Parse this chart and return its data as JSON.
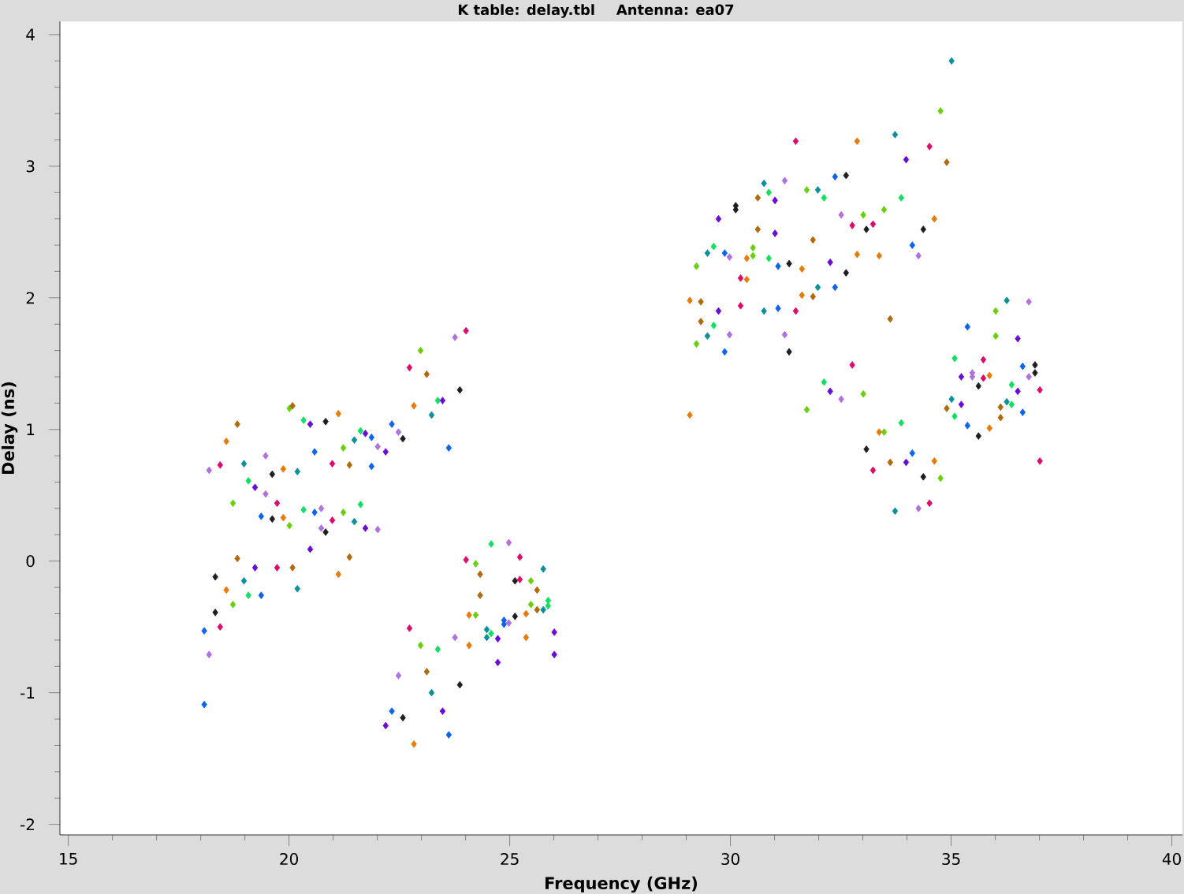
{
  "chart_data": {
    "type": "scatter",
    "title": "K table: delay.tbl",
    "subtitle": "Antenna: ea07",
    "xlabel": "Frequency (GHz)",
    "ylabel": "Delay (ns)",
    "xlim": [
      14.81,
      40.24
    ],
    "ylim": [
      -2.08,
      4.1
    ],
    "xticks": [
      15,
      {
        "value": 16,
        "label": null
      },
      {
        "value": 17,
        "label": null
      },
      {
        "value": 18,
        "label": null
      },
      {
        "value": 19,
        "label": null
      },
      20,
      {
        "value": 21,
        "label": null
      },
      {
        "value": 22,
        "label": null
      },
      {
        "value": 23,
        "label": null
      },
      {
        "value": 24,
        "label": null
      },
      25,
      {
        "value": 26,
        "label": null
      },
      {
        "value": 27,
        "label": null
      },
      {
        "value": 28,
        "label": null
      },
      {
        "value": 29,
        "label": null
      },
      30,
      {
        "value": 31,
        "label": null
      },
      {
        "value": 32,
        "label": null
      },
      {
        "value": 33,
        "label": null
      },
      {
        "value": 34,
        "label": null
      },
      35,
      {
        "value": 36,
        "label": null
      },
      {
        "value": 37,
        "label": null
      },
      {
        "value": 38,
        "label": null
      },
      {
        "value": 39,
        "label": null
      },
      40
    ],
    "yticks": [
      -2,
      {
        "value": -1.8,
        "label": null
      },
      {
        "value": -1.6,
        "label": null
      },
      {
        "value": -1.4,
        "label": null
      },
      {
        "value": -1.2,
        "label": null
      },
      -1,
      {
        "value": -0.8,
        "label": null
      },
      {
        "value": -0.6,
        "label": null
      },
      {
        "value": -0.4,
        "label": null
      },
      {
        "value": -0.2,
        "label": null
      },
      0,
      {
        "value": 0.2,
        "label": null
      },
      {
        "value": 0.4,
        "label": null
      },
      {
        "value": 0.6,
        "label": null
      },
      {
        "value": 0.8,
        "label": null
      },
      1,
      {
        "value": 1.2,
        "label": null
      },
      {
        "value": 1.4,
        "label": null
      },
      {
        "value": 1.6,
        "label": null
      },
      {
        "value": 1.8,
        "label": null
      },
      2,
      {
        "value": 2.2,
        "label": null
      },
      {
        "value": 2.4,
        "label": null
      },
      {
        "value": 2.6,
        "label": null
      },
      {
        "value": 2.8,
        "label": null
      },
      3,
      {
        "value": 3.2,
        "label": null
      },
      {
        "value": 3.4,
        "label": null
      },
      {
        "value": 3.6,
        "label": null
      },
      {
        "value": 3.8,
        "label": null
      },
      4
    ],
    "marker": "diamond",
    "series": [
      {
        "color": "#1e1e1e",
        "x": [
          20.83,
          19.62,
          19.62,
          20.83,
          18.33,
          18.33,
          23.87,
          22.58,
          23.87,
          22.58,
          25.12,
          25.12,
          32.62,
          30.12,
          30.12,
          31.33,
          32.62,
          31.33,
          33.08,
          34.37,
          36.9,
          36.9,
          35.62,
          35.62,
          33.08,
          34.37
        ],
        "values": [
          1.06,
          0.66,
          0.32,
          0.22,
          -0.12,
          -0.39,
          1.3,
          0.93,
          -0.94,
          -1.19,
          -0.15,
          -0.42,
          2.93,
          2.7,
          2.67,
          2.26,
          2.19,
          1.59,
          2.52,
          2.52,
          1.49,
          1.43,
          1.33,
          0.95,
          0.85,
          0.64
        ]
      },
      {
        "color": "#0a64f0",
        "x": [
          20.58,
          19.37,
          20.58,
          19.37,
          18.08,
          18.08,
          22.33,
          21.87,
          23.62,
          21.87,
          22.33,
          23.62,
          24.87,
          24.87,
          32.37,
          29.87,
          31.08,
          32.37,
          31.08,
          29.87,
          34.12,
          35.37,
          36.62,
          36.62,
          35.37,
          34.12
        ],
        "values": [
          0.83,
          0.34,
          0.37,
          -0.26,
          -0.53,
          -1.09,
          1.04,
          0.94,
          0.86,
          0.72,
          -1.14,
          -1.32,
          -0.45,
          -0.48,
          2.92,
          2.34,
          2.24,
          2.08,
          1.92,
          1.59,
          2.4,
          1.78,
          1.48,
          1.13,
          1.03,
          0.82
        ]
      },
      {
        "color": "#e0086c",
        "x": [
          18.44,
          20.98,
          19.73,
          20.98,
          19.73,
          18.44,
          24.01,
          22.73,
          24.01,
          22.73,
          25.23,
          25.23,
          31.48,
          32.76,
          30.23,
          30.23,
          31.48,
          32.76,
          34.51,
          33.23,
          35.73,
          35.73,
          37.01,
          33.23,
          34.51,
          37.01
        ],
        "values": [
          0.73,
          0.74,
          0.44,
          0.31,
          -0.05,
          -0.5,
          1.75,
          1.47,
          0.01,
          -0.51,
          0.03,
          -0.14,
          3.19,
          2.55,
          2.15,
          1.94,
          1.9,
          1.49,
          3.15,
          2.56,
          1.53,
          1.39,
          1.3,
          0.69,
          0.44,
          0.76
        ]
      },
      {
        "color": "#10e060",
        "x": [
          20.33,
          19.08,
          20.33,
          19.08,
          21.62,
          23.37,
          21.62,
          23.37,
          24.58,
          25.87,
          25.87,
          24.58,
          30.87,
          32.12,
          29.62,
          30.87,
          29.62,
          32.12,
          33.87,
          35.08,
          36.37,
          36.37,
          35.08,
          33.87
        ],
        "values": [
          1.07,
          0.61,
          0.39,
          -0.26,
          0.99,
          1.22,
          0.43,
          -0.67,
          0.13,
          -0.3,
          -0.34,
          -0.55,
          2.8,
          2.76,
          2.39,
          2.3,
          1.79,
          1.36,
          2.76,
          1.54,
          1.34,
          1.19,
          1.1,
          1.05
        ]
      },
      {
        "color": "#6a0ad8",
        "x": [
          20.48,
          19.23,
          20.48,
          19.23,
          21.73,
          22.19,
          23.48,
          21.73,
          22.19,
          23.48,
          24.73,
          26.01,
          24.73,
          26.01,
          31.01,
          29.73,
          31.01,
          32.26,
          29.73,
          32.26,
          33.98,
          36.51,
          35.23,
          36.51,
          35.23,
          33.98
        ],
        "values": [
          1.04,
          0.56,
          0.09,
          -0.05,
          0.97,
          0.83,
          1.22,
          0.25,
          -1.25,
          -1.14,
          -0.59,
          -0.54,
          -0.77,
          -0.71,
          2.74,
          2.6,
          2.49,
          2.27,
          1.9,
          1.29,
          3.05,
          1.69,
          1.4,
          1.29,
          1.19,
          0.75
        ]
      },
      {
        "color": "#e87a08",
        "x": [
          21.12,
          18.58,
          19.87,
          19.87,
          21.12,
          18.58,
          22.83,
          24.08,
          24.08,
          22.83,
          25.37,
          25.37,
          32.87,
          30.37,
          31.62,
          32.87,
          30.37,
          31.62,
          29.08,
          29.08,
          34.62,
          33.37,
          35.87,
          35.87,
          33.37,
          34.62
        ],
        "values": [
          1.12,
          0.91,
          0.7,
          0.33,
          -0.1,
          -0.22,
          1.18,
          -0.41,
          -0.64,
          -1.39,
          -0.4,
          -0.58,
          3.19,
          2.3,
          2.22,
          2.33,
          2.14,
          2.02,
          1.98,
          1.11,
          2.6,
          2.32,
          1.41,
          1.01,
          0.98,
          0.76
        ]
      },
      {
        "color": "#08909c",
        "x": [
          21.48,
          18.98,
          20.19,
          21.48,
          18.98,
          20.19,
          23.23,
          24.48,
          24.48,
          23.23,
          25.76,
          25.76,
          30.76,
          31.98,
          29.48,
          31.98,
          30.76,
          29.48,
          35.01,
          33.73,
          36.26,
          35.01,
          36.26,
          33.73
        ],
        "values": [
          0.92,
          0.74,
          0.68,
          0.3,
          -0.15,
          -0.21,
          1.11,
          -0.52,
          -0.58,
          -1.0,
          -0.06,
          -0.37,
          2.87,
          2.82,
          2.34,
          2.08,
          1.9,
          1.71,
          3.8,
          3.24,
          1.98,
          1.23,
          1.21,
          0.38
        ]
      },
      {
        "color": "#68d008",
        "x": [
          20.01,
          21.23,
          18.73,
          20.01,
          21.23,
          18.73,
          22.98,
          24.23,
          24.23,
          22.98,
          25.48,
          25.48,
          31.73,
          30.51,
          30.51,
          29.23,
          29.23,
          31.73,
          34.76,
          33.01,
          33.48,
          36.01,
          36.01,
          33.01,
          33.48,
          34.76
        ],
        "values": [
          1.16,
          0.86,
          0.44,
          0.27,
          0.37,
          -0.33,
          1.6,
          -0.02,
          -0.41,
          -0.64,
          -0.15,
          -0.33,
          2.82,
          2.38,
          2.32,
          2.24,
          1.65,
          1.15,
          3.42,
          2.63,
          2.67,
          1.9,
          1.71,
          1.27,
          0.98,
          0.63
        ]
      },
      {
        "color": "#b06a0a",
        "x": [
          20.08,
          18.83,
          21.37,
          18.83,
          20.08,
          21.37,
          23.12,
          24.33,
          24.33,
          23.12,
          25.62,
          25.62,
          30.62,
          30.62,
          31.87,
          31.87,
          29.33,
          29.33,
          34.9,
          33.62,
          34.9,
          36.12,
          36.12,
          33.62
        ],
        "values": [
          1.18,
          1.04,
          0.73,
          0.02,
          -0.05,
          0.03,
          1.42,
          -0.1,
          -0.26,
          -0.84,
          -0.22,
          -0.37,
          2.76,
          2.52,
          2.44,
          2.01,
          1.97,
          1.82,
          3.03,
          1.84,
          1.16,
          1.17,
          1.09,
          0.75
        ]
      },
      {
        "color": "#b070e0",
        "x": [
          18.19,
          19.47,
          20.73,
          19.47,
          20.73,
          18.19,
          23.76,
          22.48,
          22.01,
          22.01,
          23.76,
          22.48,
          24.98,
          24.98,
          31.23,
          32.51,
          29.98,
          29.98,
          31.23,
          32.51,
          34.26,
          36.76,
          35.48,
          35.48,
          36.76,
          34.26
        ],
        "values": [
          0.69,
          0.8,
          0.4,
          0.51,
          0.25,
          -0.71,
          1.7,
          0.98,
          0.87,
          0.24,
          -0.58,
          -0.87,
          0.14,
          -0.47,
          2.89,
          2.63,
          2.31,
          1.72,
          1.72,
          1.23,
          2.32,
          1.97,
          1.43,
          1.4,
          1.4,
          0.4
        ]
      }
    ]
  }
}
